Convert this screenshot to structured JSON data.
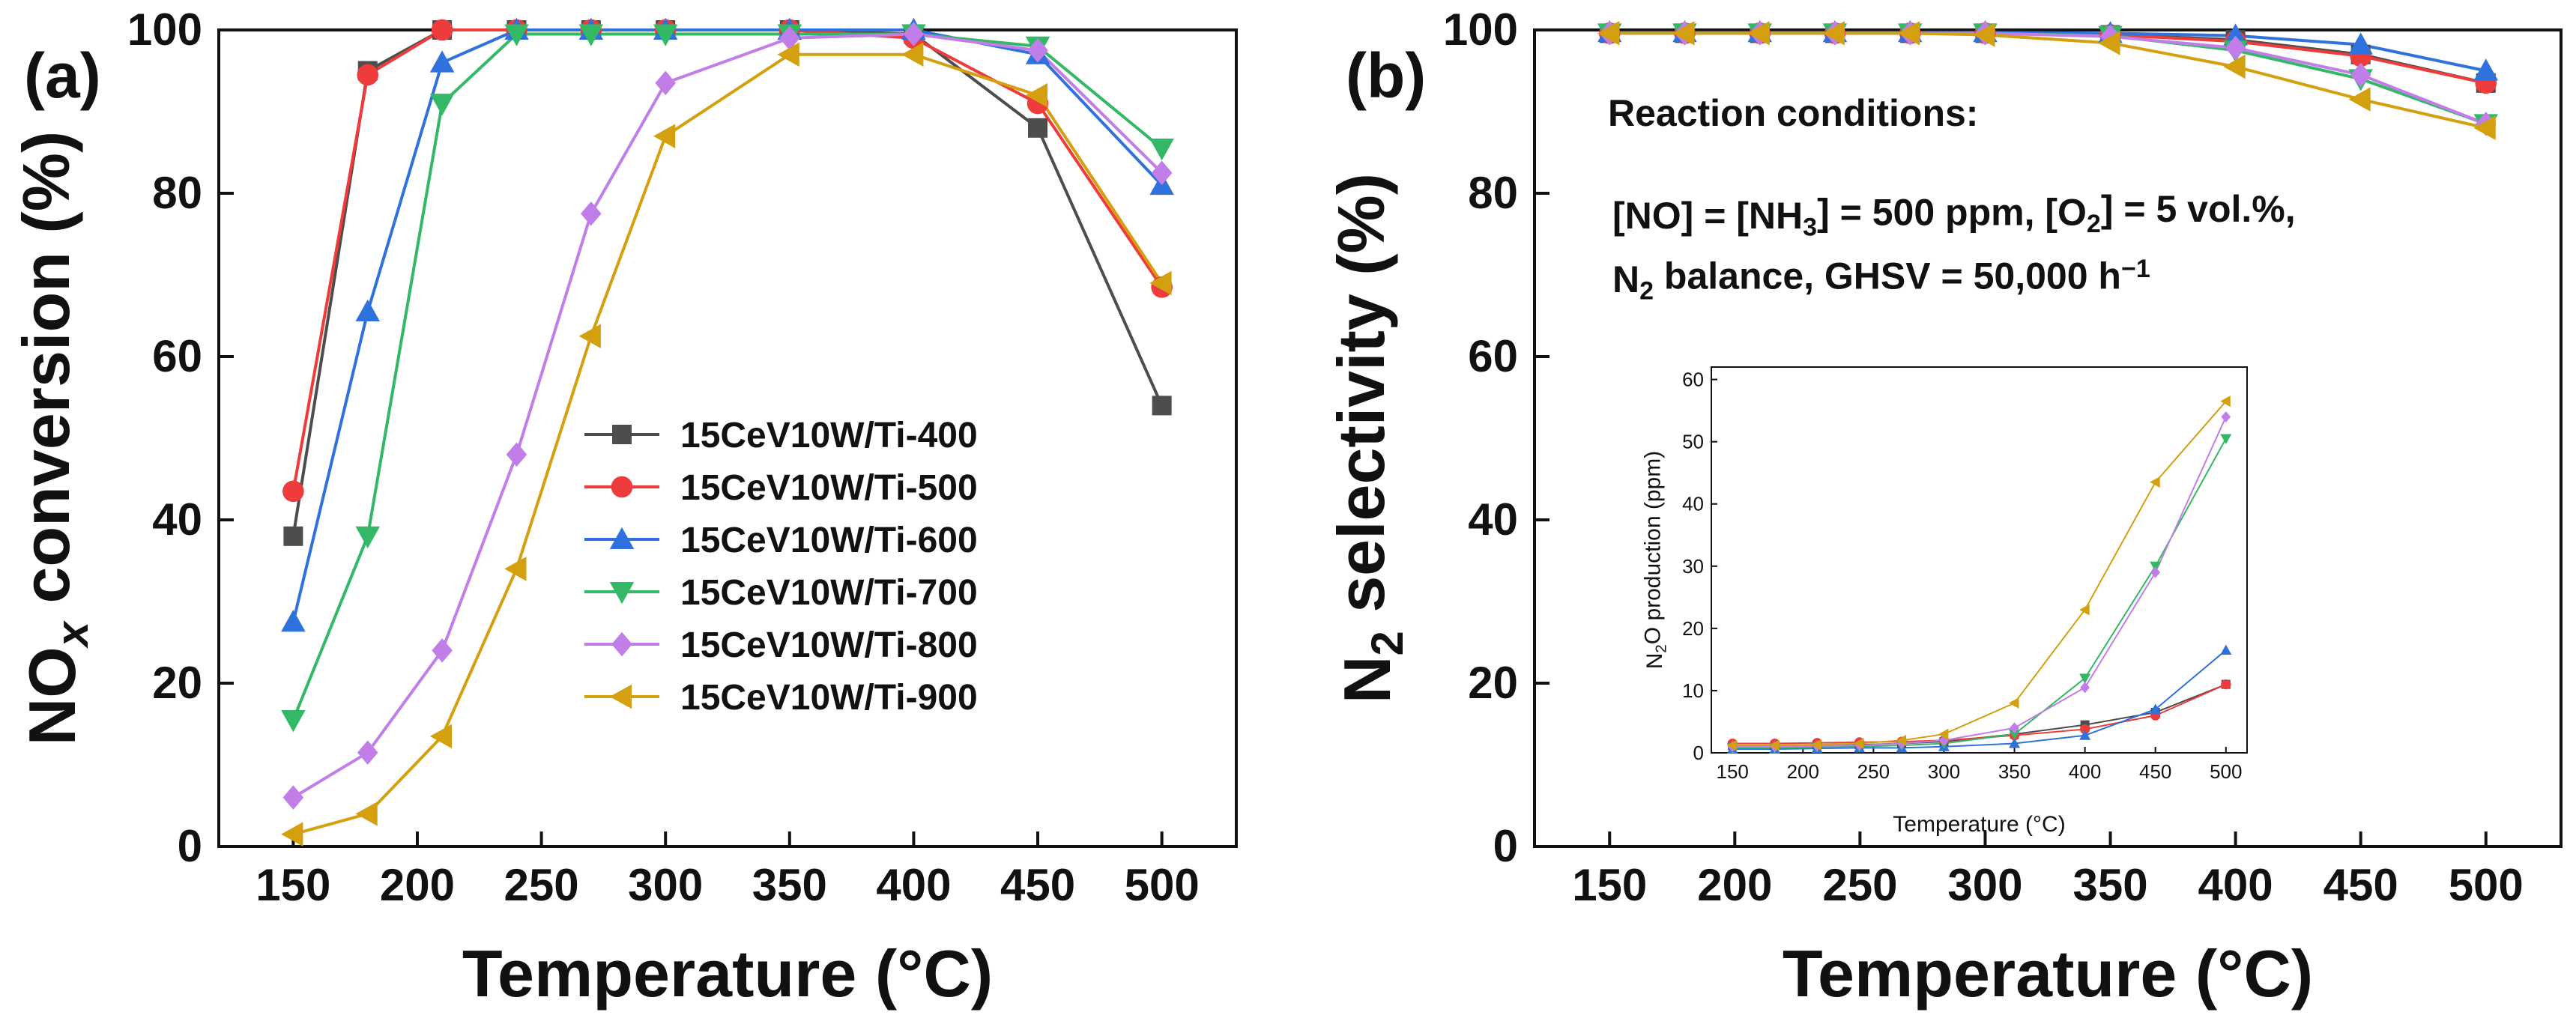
{
  "chart_data": [
    {
      "panel": "a",
      "panel_label": "(a)",
      "type": "line",
      "xlabel": "Temperature (°C)",
      "ylabel": "NO",
      "ylabel_sub": "x",
      "ylabel_rest": " conversion (%)",
      "xlim": [
        120,
        530
      ],
      "ylim": [
        0,
        100
      ],
      "xticks": [
        150,
        200,
        250,
        300,
        350,
        400,
        450,
        500
      ],
      "yticks": [
        0,
        20,
        40,
        60,
        80,
        100
      ],
      "legend_position": "center-right",
      "x": [
        150,
        180,
        210,
        240,
        270,
        300,
        350,
        400,
        450,
        500
      ],
      "series": [
        {
          "name": "15CeV10W/Ti-400",
          "color": "#4d4d4d",
          "marker": "square",
          "values": [
            38,
            95,
            100,
            100,
            100,
            100,
            100,
            99.5,
            88,
            54
          ]
        },
        {
          "name": "15CeV10W/Ti-500",
          "color": "#ee3b3b",
          "marker": "circle",
          "values": [
            43.5,
            94.5,
            100,
            100,
            100,
            100,
            100,
            99,
            91,
            68.5
          ]
        },
        {
          "name": "15CeV10W/Ti-600",
          "color": "#2f72dd",
          "marker": "triangle-up",
          "values": [
            27.5,
            65.5,
            96,
            100,
            100,
            100,
            100,
            100,
            97,
            81
          ]
        },
        {
          "name": "15CeV10W/Ti-700",
          "color": "#33b865",
          "marker": "triangle-down",
          "values": [
            15.5,
            38,
            91,
            99.5,
            99.5,
            99.5,
            99.5,
            99.5,
            98,
            85.5
          ]
        },
        {
          "name": "15CeV10W/Ti-800",
          "color": "#c17ee8",
          "marker": "diamond",
          "values": [
            6,
            11.5,
            24,
            48,
            77.5,
            93.5,
            99,
            99.5,
            97.5,
            82.5
          ]
        },
        {
          "name": "15CeV10W/Ti-900",
          "color": "#d4a010",
          "marker": "triangle-left",
          "values": [
            1.5,
            4,
            13.5,
            34,
            62.5,
            87,
            97,
            97,
            92,
            69
          ]
        }
      ]
    },
    {
      "panel": "b",
      "panel_label": "(b)",
      "type": "line",
      "xlabel": "Temperature (°C)",
      "ylabel": "N",
      "ylabel_sub": "2",
      "ylabel_rest": " selectivity (%)",
      "xlim": [
        120,
        530
      ],
      "ylim": [
        0,
        100
      ],
      "xticks": [
        150,
        200,
        250,
        300,
        350,
        400,
        450,
        500
      ],
      "yticks": [
        0,
        20,
        40,
        60,
        80,
        100
      ],
      "x": [
        150,
        180,
        210,
        240,
        270,
        300,
        350,
        400,
        450,
        500
      ],
      "series": [
        {
          "name": "15CeV10W/Ti-400",
          "color": "#4d4d4d",
          "marker": "square",
          "values": [
            99.6,
            99.6,
            99.6,
            99.6,
            99.6,
            99.6,
            99.4,
            98.8,
            97,
            93.5
          ]
        },
        {
          "name": "15CeV10W/Ti-500",
          "color": "#ee3b3b",
          "marker": "circle",
          "values": [
            99.6,
            99.6,
            99.6,
            99.6,
            99.6,
            99.6,
            99.4,
            98.6,
            96.8,
            93.5
          ]
        },
        {
          "name": "15CeV10W/Ti-600",
          "color": "#2f72dd",
          "marker": "triangle-up",
          "values": [
            99.7,
            99.7,
            99.7,
            99.7,
            99.7,
            99.7,
            99.6,
            99.3,
            98.2,
            95
          ]
        },
        {
          "name": "15CeV10W/Ti-700",
          "color": "#33b865",
          "marker": "triangle-down",
          "values": [
            99.6,
            99.6,
            99.6,
            99.6,
            99.6,
            99.6,
            99.3,
            97.5,
            94,
            88.5
          ]
        },
        {
          "name": "15CeV10W/Ti-800",
          "color": "#c17ee8",
          "marker": "diamond",
          "values": [
            99.6,
            99.6,
            99.6,
            99.6,
            99.6,
            99.6,
            99.2,
            97.8,
            94.5,
            88.5
          ]
        },
        {
          "name": "15CeV10W/Ti-900",
          "color": "#d4a010",
          "marker": "triangle-left",
          "values": [
            99.6,
            99.6,
            99.6,
            99.6,
            99.6,
            99.4,
            98.4,
            95.5,
            91.5,
            88
          ]
        }
      ],
      "annotation": {
        "title": "Reaction conditions:",
        "line1_parts": [
          {
            "t": "[NO] = [NH"
          },
          {
            "t": "3",
            "sub": true
          },
          {
            "t": "] = 500 ppm, [O"
          },
          {
            "t": "2",
            "sub": true
          },
          {
            "t": "] = 5 vol.%,"
          }
        ],
        "line2_parts": [
          {
            "t": "N"
          },
          {
            "t": "2",
            "sub": true
          },
          {
            "t": " balance, GHSV = 50,000 h"
          },
          {
            "t": "−1",
            "sup": true
          }
        ]
      }
    },
    {
      "panel": "b-inset",
      "type": "line",
      "xlabel": "Temperature (°C)",
      "ylabel": "N",
      "ylabel_sub": "2",
      "ylabel_rest": "O production (ppm)",
      "xlim": [
        135,
        515
      ],
      "ylim": [
        0,
        62
      ],
      "xticks": [
        150,
        200,
        250,
        300,
        350,
        400,
        450,
        500
      ],
      "yticks": [
        0,
        10,
        20,
        30,
        40,
        50,
        60
      ],
      "x": [
        150,
        180,
        210,
        240,
        270,
        300,
        350,
        400,
        450,
        500
      ],
      "series": [
        {
          "name": "15CeV10W/Ti-400",
          "color": "#4d4d4d",
          "marker": "square",
          "values": [
            1.2,
            1.2,
            1.3,
            1.3,
            1.5,
            1.8,
            3,
            4.5,
            6.5,
            11
          ]
        },
        {
          "name": "15CeV10W/Ti-500",
          "color": "#ee3b3b",
          "marker": "circle",
          "values": [
            1.5,
            1.5,
            1.6,
            1.7,
            1.8,
            2,
            2.8,
            3.8,
            6,
            11
          ]
        },
        {
          "name": "15CeV10W/Ti-600",
          "color": "#2f72dd",
          "marker": "triangle-up",
          "values": [
            0.6,
            0.6,
            0.7,
            0.8,
            0.8,
            1,
            1.5,
            2.8,
            7,
            16.5
          ]
        },
        {
          "name": "15CeV10W/Ti-700",
          "color": "#33b865",
          "marker": "triangle-down",
          "values": [
            0.8,
            0.8,
            0.9,
            1,
            1.2,
            1.5,
            3,
            12,
            30,
            50.5
          ]
        },
        {
          "name": "15CeV10W/Ti-800",
          "color": "#c17ee8",
          "marker": "diamond",
          "values": [
            1,
            1,
            1.1,
            1.2,
            1.5,
            2,
            4,
            10.5,
            29,
            54
          ]
        },
        {
          "name": "15CeV10W/Ti-900",
          "color": "#d4a010",
          "marker": "triangle-left",
          "values": [
            1.2,
            1.2,
            1.3,
            1.5,
            2,
            3,
            8,
            23,
            43.5,
            56.5
          ]
        }
      ]
    }
  ]
}
